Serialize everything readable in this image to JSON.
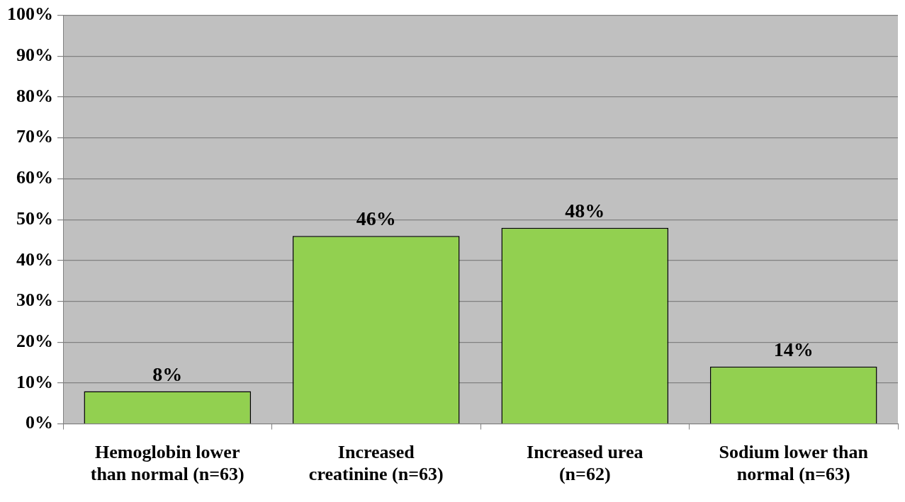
{
  "chart_data": {
    "type": "bar",
    "categories": [
      "Hemoglobin lower than normal (n=63)",
      "Increased creatinine (n=63)",
      "Increased urea (n=62)",
      "Sodium lower than normal (n=63)"
    ],
    "values": [
      8,
      46,
      48,
      14
    ],
    "value_labels": [
      "8%",
      "46%",
      "48%",
      "14%"
    ],
    "color": "#92d050",
    "ylim": [
      0,
      100
    ],
    "yticks": [
      {
        "value": 0,
        "label": "0%"
      },
      {
        "value": 10,
        "label": "10%"
      },
      {
        "value": 20,
        "label": "20%"
      },
      {
        "value": 30,
        "label": "30%"
      },
      {
        "value": 40,
        "label": "40%"
      },
      {
        "value": 50,
        "label": "50%"
      },
      {
        "value": 60,
        "label": "60%"
      },
      {
        "value": 70,
        "label": "70%"
      },
      {
        "value": 80,
        "label": "80%"
      },
      {
        "value": 90,
        "label": "90%"
      },
      {
        "value": 100,
        "label": "100%"
      }
    ],
    "grid": "y"
  }
}
